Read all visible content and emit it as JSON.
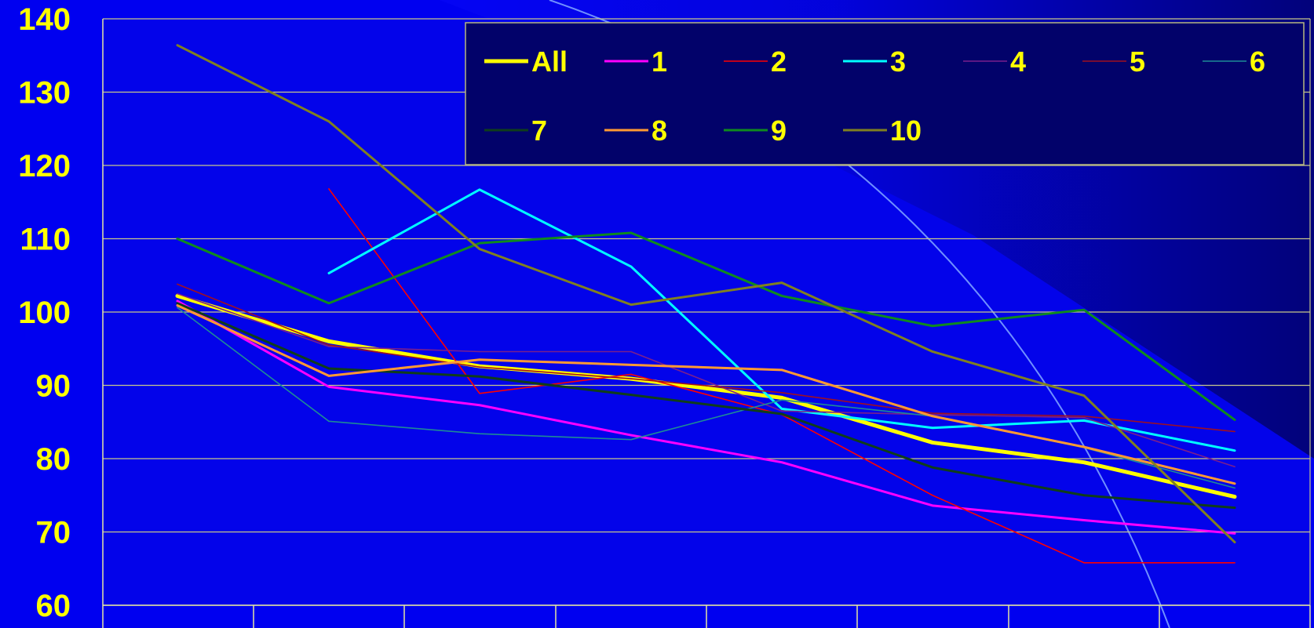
{
  "chart_data": {
    "type": "line",
    "title": "",
    "xlabel": "",
    "ylabel": "",
    "ylim": [
      60,
      140
    ],
    "y_ticks": [
      "60",
      "70",
      "80",
      "90",
      "100",
      "110",
      "120",
      "130",
      "140"
    ],
    "x_ticks": [
      "",
      "",
      "",
      "",
      "",
      "",
      "",
      ""
    ],
    "grid": true,
    "legend_position": "top-right",
    "x": [
      1,
      2,
      3,
      4,
      5,
      6,
      7,
      8
    ],
    "series": [
      {
        "name": "All",
        "color": "#ffff00",
        "width": "heavy",
        "values": [
          102.2,
          96.0,
          92.6,
          90.9,
          88.3,
          82.2,
          79.5,
          74.8
        ]
      },
      {
        "name": "1",
        "color": "#ff00ff",
        "width": "medium",
        "values": [
          101.5,
          89.8,
          87.3,
          83.2,
          79.5,
          73.6,
          71.6,
          69.8
        ]
      },
      {
        "name": "2",
        "color": "#ff0000",
        "width": "thin",
        "values": [
          null,
          116.8,
          88.9,
          91.5,
          86.0,
          75.0,
          65.8,
          65.8
        ]
      },
      {
        "name": "3",
        "color": "#00ffff",
        "width": "medium",
        "values": [
          null,
          105.3,
          116.7,
          106.2,
          86.8,
          84.2,
          85.2,
          81.1
        ]
      },
      {
        "name": "4",
        "color": "#7a1f8c",
        "width": "thin",
        "values": [
          102.5,
          95.3,
          94.6,
          94.6,
          86.5,
          86.0,
          85.6,
          78.9
        ]
      },
      {
        "name": "5",
        "color": "#a01020",
        "width": "thin",
        "values": [
          103.8,
          95.5,
          92.5,
          90.9,
          89.0,
          86.2,
          85.8,
          83.7
        ]
      },
      {
        "name": "6",
        "color": "#1e8a96",
        "width": "thin",
        "values": [
          100.6,
          85.1,
          83.4,
          82.6,
          88.0,
          85.8,
          81.5,
          76.0
        ]
      },
      {
        "name": "7",
        "color": "#0f3d1a",
        "width": "medium",
        "values": [
          101.2,
          92.3,
          91.2,
          88.7,
          86.1,
          78.8,
          75.0,
          73.3
        ]
      },
      {
        "name": "8",
        "color": "#ff9933",
        "width": "medium",
        "values": [
          100.9,
          91.3,
          93.5,
          92.8,
          92.1,
          85.8,
          81.6,
          76.6
        ]
      },
      {
        "name": "9",
        "color": "#0f8a1e",
        "width": "medium",
        "values": [
          110.0,
          101.2,
          109.4,
          110.8,
          102.2,
          98.1,
          100.3,
          85.3
        ]
      },
      {
        "name": "10",
        "color": "#808020",
        "width": "medium",
        "values": [
          136.4,
          126.0,
          108.6,
          101.0,
          104.0,
          94.6,
          88.6,
          68.6
        ]
      }
    ]
  }
}
